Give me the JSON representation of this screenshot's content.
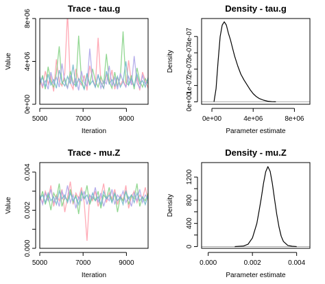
{
  "chart_data": [
    {
      "type": "line",
      "subtype": "mcmc-trace",
      "title": "Trace - tau.g",
      "xlabel": "Iteration",
      "ylabel": "Value",
      "xlim": [
        5000,
        10000
      ],
      "ylim": [
        0,
        8000000
      ],
      "x_ticks": [
        5000,
        7000,
        9000
      ],
      "x_tick_labels": [
        "5000",
        "7000",
        "9000"
      ],
      "y_ticks": [
        0,
        4000000,
        8000000
      ],
      "y_tick_labels": [
        "0e+00",
        "4e+06",
        "8e+06"
      ],
      "series": [
        {
          "color": "#ff9aa8",
          "values": [
            2300000,
            1500000,
            3100000,
            1900000,
            2600000,
            1200000,
            4200000,
            2100000,
            1700000,
            2900000,
            8600000,
            2000000,
            1400000,
            3300000,
            2200000,
            1800000,
            2700000,
            1300000,
            3600000,
            2400000,
            1600000,
            6200000,
            2100000,
            1500000,
            2800000,
            1900000,
            3200000,
            1400000,
            2500000,
            1800000,
            2300000,
            1600000,
            4100000,
            2000000,
            1700000,
            2600000,
            1300000,
            3000000,
            2200000,
            1500000
          ]
        },
        {
          "color": "#7fd07f",
          "values": [
            1800000,
            2700000,
            1400000,
            3500000,
            2100000,
            1600000,
            2900000,
            5400000,
            1900000,
            2400000,
            1500000,
            3100000,
            2000000,
            1700000,
            6400000,
            2300000,
            1400000,
            2800000,
            1800000,
            3300000,
            2200000,
            1600000,
            2600000,
            1900000,
            4700000,
            2100000,
            1500000,
            3000000,
            1700000,
            2500000,
            6800000,
            2000000,
            1800000,
            2700000,
            1400000,
            3400000,
            2200000,
            1600000,
            2400000,
            1900000
          ]
        },
        {
          "color": "#a9a0e8",
          "values": [
            2600000,
            1700000,
            2200000,
            1400000,
            3000000,
            1900000,
            2500000,
            1600000,
            3800000,
            2100000,
            1500000,
            2700000,
            1800000,
            2400000,
            1300000,
            3100000,
            2000000,
            1700000,
            5200000,
            2300000,
            1600000,
            2800000,
            1500000,
            2200000,
            1900000,
            3600000,
            1700000,
            2500000,
            1400000,
            2900000,
            2100000,
            1600000,
            2600000,
            1800000,
            4500000,
            2000000,
            1500000,
            2700000,
            1900000,
            2300000
          ]
        },
        {
          "color": "#6fb6c8",
          "values": [
            2000000,
            2500000,
            1600000,
            2800000,
            1800000,
            2300000,
            1500000,
            3200000,
            2100000,
            1700000,
            2600000,
            1900000,
            3700000,
            1600000,
            2400000,
            2000000,
            1400000,
            2900000,
            1800000,
            2200000,
            1600000,
            2700000,
            2000000,
            1500000,
            3100000,
            1900000,
            2300000,
            1700000,
            2600000,
            1600000,
            2100000,
            4000000,
            1800000,
            2400000,
            1700000,
            2800000,
            1900000,
            2200000,
            1600000,
            2500000
          ]
        }
      ]
    },
    {
      "type": "line",
      "subtype": "density",
      "title": "Density - tau.g",
      "xlabel": "Parameter estimate",
      "ylabel": "Density",
      "xlim": [
        -1000000,
        9500000
      ],
      "ylim": [
        -1.5e-08,
        5.1e-07
      ],
      "x_ticks": [
        0,
        4000000,
        8000000
      ],
      "x_tick_labels": [
        "0e+00",
        "4e+06",
        "8e+06"
      ],
      "y_ticks": [
        0,
        1e-07,
        2e-07,
        3e-07,
        4e-07
      ],
      "y_tick_labels": [
        "0e+00",
        "1e-07",
        "2e-07",
        "3e-07",
        "4e-07"
      ],
      "baseline": 0,
      "x": [
        200000,
        400000,
        600000,
        800000,
        1000000,
        1200000,
        1400000,
        1600000,
        1800000,
        2000000,
        2200000,
        2500000,
        2800000,
        3100000,
        3400000,
        3700000,
        4000000,
        4300000,
        4600000,
        5000000,
        5400000,
        5800000,
        6200000
      ],
      "y": [
        0,
        8e-08,
        2.5e-07,
        4e-07,
        4.7e-07,
        4.9e-07,
        4.7e-07,
        4.2e-07,
        3.8e-07,
        3.3e-07,
        2.8e-07,
        2.2e-07,
        1.7e-07,
        1.35e-07,
        1.05e-07,
        7.5e-08,
        5e-08,
        3.2e-08,
        2e-08,
        1e-08,
        4e-09,
        1e-09,
        0
      ]
    },
    {
      "type": "line",
      "subtype": "mcmc-trace",
      "title": "Trace - mu.Z",
      "xlabel": "Iteration",
      "ylabel": "Value",
      "xlim": [
        5000,
        10000
      ],
      "ylim": [
        0,
        0.0045
      ],
      "x_ticks": [
        5000,
        7000,
        9000
      ],
      "x_tick_labels": [
        "5000",
        "7000",
        "9000"
      ],
      "y_ticks": [
        0,
        0.001,
        0.002,
        0.003,
        0.004
      ],
      "y_tick_labels": [
        "0.000",
        "",
        "0.002",
        "",
        "0.004"
      ],
      "series": [
        {
          "color": "#ff9aa8",
          "values": [
            0.0027,
            0.0024,
            0.003,
            0.0026,
            0.0033,
            0.0022,
            0.0028,
            0.0025,
            0.0031,
            0.0019,
            0.0027,
            0.0035,
            0.0023,
            0.0029,
            0.0026,
            0.0032,
            0.0024,
            0.0004,
            0.0028,
            0.0025,
            0.003,
            0.0022,
            0.0027,
            0.0034,
            0.0024,
            0.0029,
            0.0026,
            0.0031,
            0.0023,
            0.0028,
            0.0025,
            0.0033,
            0.0021,
            0.0027,
            0.003,
            0.0024,
            0.0028,
            0.0026,
            0.0032,
            0.0025
          ]
        },
        {
          "color": "#7fd07f",
          "values": [
            0.0025,
            0.003,
            0.0023,
            0.0028,
            0.002,
            0.0029,
            0.0026,
            0.0034,
            0.0022,
            0.0027,
            0.0025,
            0.0031,
            0.0024,
            0.0028,
            0.0018,
            0.0029,
            0.0026,
            0.0033,
            0.0023,
            0.0027,
            0.0025,
            0.003,
            0.0021,
            0.0028,
            0.0026,
            0.0032,
            0.0024,
            0.0029,
            0.0019,
            0.0027,
            0.0025,
            0.003,
            0.0023,
            0.0028,
            0.0026,
            0.0034,
            0.0022,
            0.0027,
            0.0025,
            0.0029
          ]
        },
        {
          "color": "#a9a0e8",
          "values": [
            0.0028,
            0.0023,
            0.0029,
            0.0025,
            0.0031,
            0.0024,
            0.0027,
            0.0022,
            0.003,
            0.0026,
            0.0033,
            0.0024,
            0.0028,
            0.0021,
            0.0027,
            0.0025,
            0.003,
            0.0023,
            0.0028,
            0.0026,
            0.0032,
            0.0024,
            0.0029,
            0.0022,
            0.0027,
            0.0025,
            0.0031,
            0.0023,
            0.0028,
            0.0026,
            0.003,
            0.0024,
            0.0027,
            0.0022,
            0.0029,
            0.0025,
            0.0031,
            0.0024,
            0.0028,
            0.0026
          ]
        },
        {
          "color": "#6fb6c8",
          "values": [
            0.0026,
            0.0028,
            0.0024,
            0.0029,
            0.0025,
            0.0027,
            0.0023,
            0.003,
            0.0026,
            0.0028,
            0.0024,
            0.0029,
            0.0025,
            0.0027,
            0.0023,
            0.003,
            0.0026,
            0.0028,
            0.0024,
            0.0029,
            0.0025,
            0.0027,
            0.0023,
            0.003,
            0.0026,
            0.0028,
            0.0024,
            0.0029,
            0.0025,
            0.0027,
            0.0023,
            0.003,
            0.0026,
            0.0028,
            0.0024,
            0.0029,
            0.0025,
            0.0027,
            0.0023,
            0.0028
          ]
        }
      ]
    },
    {
      "type": "line",
      "subtype": "density",
      "title": "Density - mu.Z",
      "xlabel": "Parameter estimate",
      "ylabel": "Density",
      "xlim": [
        -0.0003,
        0.0046
      ],
      "ylim": [
        -30,
        1450
      ],
      "x_ticks": [
        0,
        0.002,
        0.004
      ],
      "x_tick_labels": [
        "0.000",
        "0.002",
        "0.004"
      ],
      "y_ticks": [
        0,
        200,
        400,
        600,
        800,
        1000,
        1200
      ],
      "y_tick_labels": [
        "0",
        "",
        "400",
        "",
        "800",
        "",
        "1200"
      ],
      "baseline": 0,
      "x": [
        0.0012,
        0.0016,
        0.0018,
        0.002,
        0.0022,
        0.0023,
        0.0024,
        0.0025,
        0.0026,
        0.0027,
        0.0028,
        0.0029,
        0.003,
        0.0031,
        0.0032,
        0.0033,
        0.0034,
        0.0036,
        0.0038,
        0.004
      ],
      "y": [
        0,
        10,
        40,
        150,
        400,
        610,
        840,
        1090,
        1290,
        1380,
        1300,
        1090,
        820,
        560,
        340,
        180,
        90,
        20,
        5,
        0
      ]
    }
  ]
}
